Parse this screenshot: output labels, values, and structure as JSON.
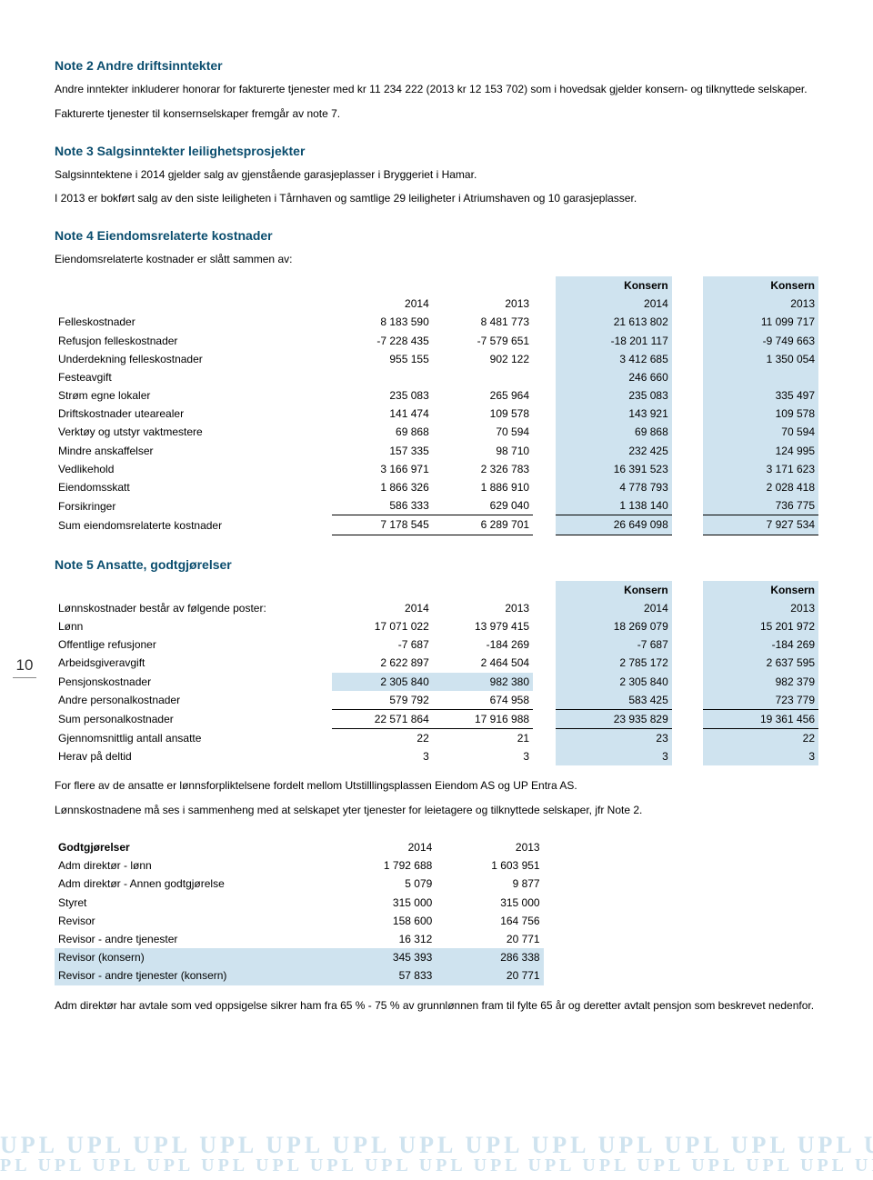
{
  "page_number": "10",
  "colors": {
    "heading": "#0a4d6e",
    "highlight": "#cfe3ef",
    "text": "#000000",
    "bg": "#ffffff"
  },
  "note2": {
    "title": "Note 2  Andre driftsinntekter",
    "p1": "Andre inntekter inkluderer  honorar for fakturerte tjenester med kr 11 234 222 (2013 kr 12 153 702) som i hovedsak gjelder konsern- og tilknyttede selskaper.",
    "p2": "Fakturerte tjenester til  konsernselskaper fremgår av note 7."
  },
  "note3": {
    "title": "Note 3  Salgsinntekter leilighetsprosjekter",
    "p1": "Salgsinntektene i 2014 gjelder salg av gjenstående garasjeplasser i Bryggeriet i Hamar.",
    "p2": "I 2013 er bokført salg av den siste leiligheten i Tårnhaven og samtlige 29 leiligheter i Atriumshaven og 10 garasjeplasser."
  },
  "note4": {
    "title": "Note 4  Eiendomsrelaterte kostnader",
    "intro": "Eiendomsrelaterte kostnader er slått sammen av:",
    "headers": {
      "c1": "2014",
      "c2": "2013",
      "c3_top": "Konsern",
      "c3": "2014",
      "c4_top": "Konsern",
      "c4": "2013"
    },
    "rows": [
      {
        "label": "Felleskostnader",
        "c1": "8 183 590",
        "c2": "8 481 773",
        "c3": "21 613 802",
        "c4": "11 099 717",
        "hl34": true
      },
      {
        "label": "Refusjon felleskostnader",
        "c1": "-7 228 435",
        "c2": "-7 579 651",
        "c3": "-18 201 117",
        "c4": "-9 749 663",
        "hl34": true
      },
      {
        "label": "Underdekning felleskostnader",
        "c1": "955 155",
        "c2": "902 122",
        "c3": "3 412 685",
        "c4": "1 350 054",
        "hl34": true
      },
      {
        "label": "Festeavgift",
        "c1": "",
        "c2": "",
        "c3": "246 660",
        "c4": "",
        "hl34": true
      },
      {
        "label": "Strøm egne lokaler",
        "c1": "235 083",
        "c2": "265 964",
        "c3": "235 083",
        "c4": "335 497",
        "hl34": true
      },
      {
        "label": "Driftskostnader utearealer",
        "c1": "141 474",
        "c2": "109 578",
        "c3": "143 921",
        "c4": "109 578",
        "hl34": true
      },
      {
        "label": "Verktøy og utstyr vaktmestere",
        "c1": "69 868",
        "c2": "70 594",
        "c3": "69 868",
        "c4": "70 594",
        "hl34": true
      },
      {
        "label": "Mindre anskaffelser",
        "c1": "157 335",
        "c2": "98 710",
        "c3": "232 425",
        "c4": "124 995",
        "hl34": true
      },
      {
        "label": "Vedlikehold",
        "c1": "3 166 971",
        "c2": "2 326 783",
        "c3": "16 391 523",
        "c4": "3 171 623",
        "hl34": true
      },
      {
        "label": "Eiendomsskatt",
        "c1": "1 866 326",
        "c2": "1 886 910",
        "c3": "4 778 793",
        "c4": "2 028 418",
        "hl34": true
      },
      {
        "label": "Forsikringer",
        "c1": "586 333",
        "c2": "629 040",
        "c3": "1 138 140",
        "c4": "736 775",
        "hl34": true,
        "underline": true
      },
      {
        "label": "Sum eiendomsrelaterte kostnader",
        "c1": "7 178 545",
        "c2": "6 289 701",
        "c3": "26 649 098",
        "c4": "7 927 534",
        "hl34": true,
        "underline": true
      }
    ]
  },
  "note5": {
    "title": "Note 5  Ansatte, godtgjørelser",
    "headers": {
      "label": "Lønnskostnader består av følgende poster:",
      "c1": "2014",
      "c2": "2013",
      "c3_top": "Konsern",
      "c3": "2014",
      "c4_top": "Konsern",
      "c4": "2013"
    },
    "rows": [
      {
        "label": "Lønn",
        "c1": "17 071 022",
        "c2": "13 979 415",
        "c3": "18 269 079",
        "c4": "15 201 972",
        "hl34": true
      },
      {
        "label": "Offentlige refusjoner",
        "c1": "-7 687",
        "c2": "-184 269",
        "c3": "-7 687",
        "c4": "-184 269",
        "hl34": true
      },
      {
        "label": "Arbeidsgiveravgift",
        "c1": "2 622 897",
        "c2": "2 464 504",
        "c3": "2 785 172",
        "c4": "2 637 595",
        "hl34": true
      },
      {
        "label": "Pensjonskostnader",
        "c1": "2 305 840",
        "c2": "982 380",
        "c3": "2 305 840",
        "c4": "982 379",
        "hl12": true,
        "hl34": true
      },
      {
        "label": "Andre personalkostnader",
        "c1": "579 792",
        "c2": "674 958",
        "c3": "583 425",
        "c4": "723 779",
        "hl34": true,
        "underline": true
      },
      {
        "label": "Sum personalkostnader",
        "c1": "22 571 864",
        "c2": "17 916 988",
        "c3": "23 935 829",
        "c4": "19 361 456",
        "hl34": true,
        "underline": true
      },
      {
        "label": "Gjennomsnittlig antall ansatte",
        "c1": "22",
        "c2": "21",
        "c3": "23",
        "c4": "22",
        "hl34": true
      },
      {
        "label": "Herav på deltid",
        "c1": "3",
        "c2": "3",
        "c3": "3",
        "c4": "3",
        "hl34": true
      }
    ],
    "p1": "For flere av de ansatte er lønnsforpliktelsene fordelt mellom Utstilllingsplassen Eiendom AS og UP Entra AS.",
    "p2": "Lønnskostnadene må ses i sammenheng med at selskapet yter tjenester for leietagere og tilknyttede selskaper, jfr Note 2.",
    "godt_headers": {
      "label": "Godtgjørelser",
      "c1": "2014",
      "c2": "2013"
    },
    "godt_rows": [
      {
        "label": "Adm direktør - lønn",
        "c1": "1 792 688",
        "c2": "1 603 951"
      },
      {
        "label": "Adm direktør - Annen godtgjørelse",
        "c1": "5 079",
        "c2": "9 877"
      },
      {
        "label": "Styret",
        "c1": "315 000",
        "c2": "315 000"
      },
      {
        "label": "Revisor",
        "c1": "158 600",
        "c2": "164 756"
      },
      {
        "label": "Revisor - andre tjenester",
        "c1": "16 312",
        "c2": "20 771"
      },
      {
        "label": "Revisor (konsern)",
        "c1": "345 393",
        "c2": "286 338",
        "hlrow": true
      },
      {
        "label": "Revisor - andre tjenester (konsern)",
        "c1": "57 833",
        "c2": "20 771",
        "hlrow": true
      }
    ],
    "p3": "Adm direktør har avtale som ved oppsigelse sikrer ham fra 65 % - 75 % av grunnlønnen fram til fylte 65 år og deretter avtalt pensjon som beskrevet nedenfor."
  },
  "watermark": {
    "row1": "UPL UPL UPL UPL UPL UPL UPL UPL UPL UPL UPL UPL UPL UPL UPL UPL",
    "row2": "PL UPL UPL UPL UPL UPL UPL UPL UPL UPL UPL UPL UPL UPL UPL UPL UPL UPL UPL"
  }
}
